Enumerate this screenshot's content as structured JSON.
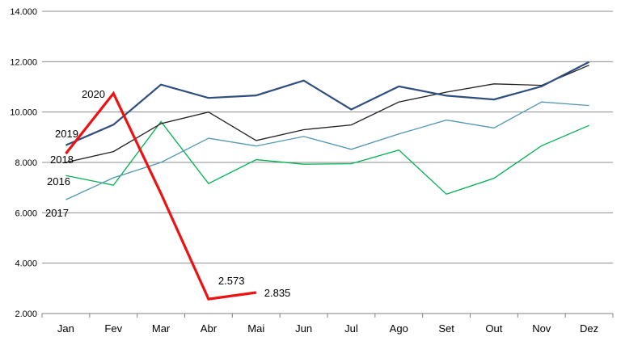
{
  "chart_data": {
    "type": "line",
    "title": "",
    "xlabel": "",
    "ylabel": "",
    "categories": [
      "Jan",
      "Fev",
      "Mar",
      "Abr",
      "Mai",
      "Jun",
      "Jul",
      "Ago",
      "Set",
      "Out",
      "Nov",
      "Dez"
    ],
    "ylim": [
      2000,
      14000
    ],
    "yticks": [
      2000,
      4000,
      6000,
      8000,
      10000,
      12000,
      14000
    ],
    "ytick_labels": [
      "2.000",
      "4.000",
      "6.000",
      "8.000",
      "10.000",
      "12.000",
      "14.000"
    ],
    "grid": true,
    "legend": "none (series labels placed next to lines)",
    "series": [
      {
        "name": "2016",
        "color": "#00b050",
        "values": [
          7480,
          7100,
          9620,
          7160,
          8110,
          7930,
          7950,
          8490,
          6740,
          7370,
          8660,
          9470
        ]
      },
      {
        "name": "2017",
        "color": "#4f97b3",
        "values": [
          6520,
          7390,
          8000,
          8960,
          8650,
          9030,
          8520,
          9130,
          9680,
          9370,
          10400,
          10260
        ]
      },
      {
        "name": "2018",
        "color": "#1f1f1f",
        "values": [
          8000,
          8430,
          9540,
          10000,
          8870,
          9300,
          9490,
          10400,
          10790,
          11120,
          11060,
          11860
        ]
      },
      {
        "name": "2019",
        "color": "#2e4e7e",
        "values": [
          8680,
          9500,
          11090,
          10560,
          10660,
          11250,
          10100,
          11020,
          10650,
          10500,
          11020,
          11990
        ]
      },
      {
        "name": "2020",
        "color": "#ee1111",
        "values": [
          8350,
          10740,
          6760,
          2573,
          2835,
          null,
          null,
          null,
          null,
          null,
          null,
          null
        ],
        "data_labels": [
          "2.573",
          "2.835"
        ]
      }
    ]
  }
}
